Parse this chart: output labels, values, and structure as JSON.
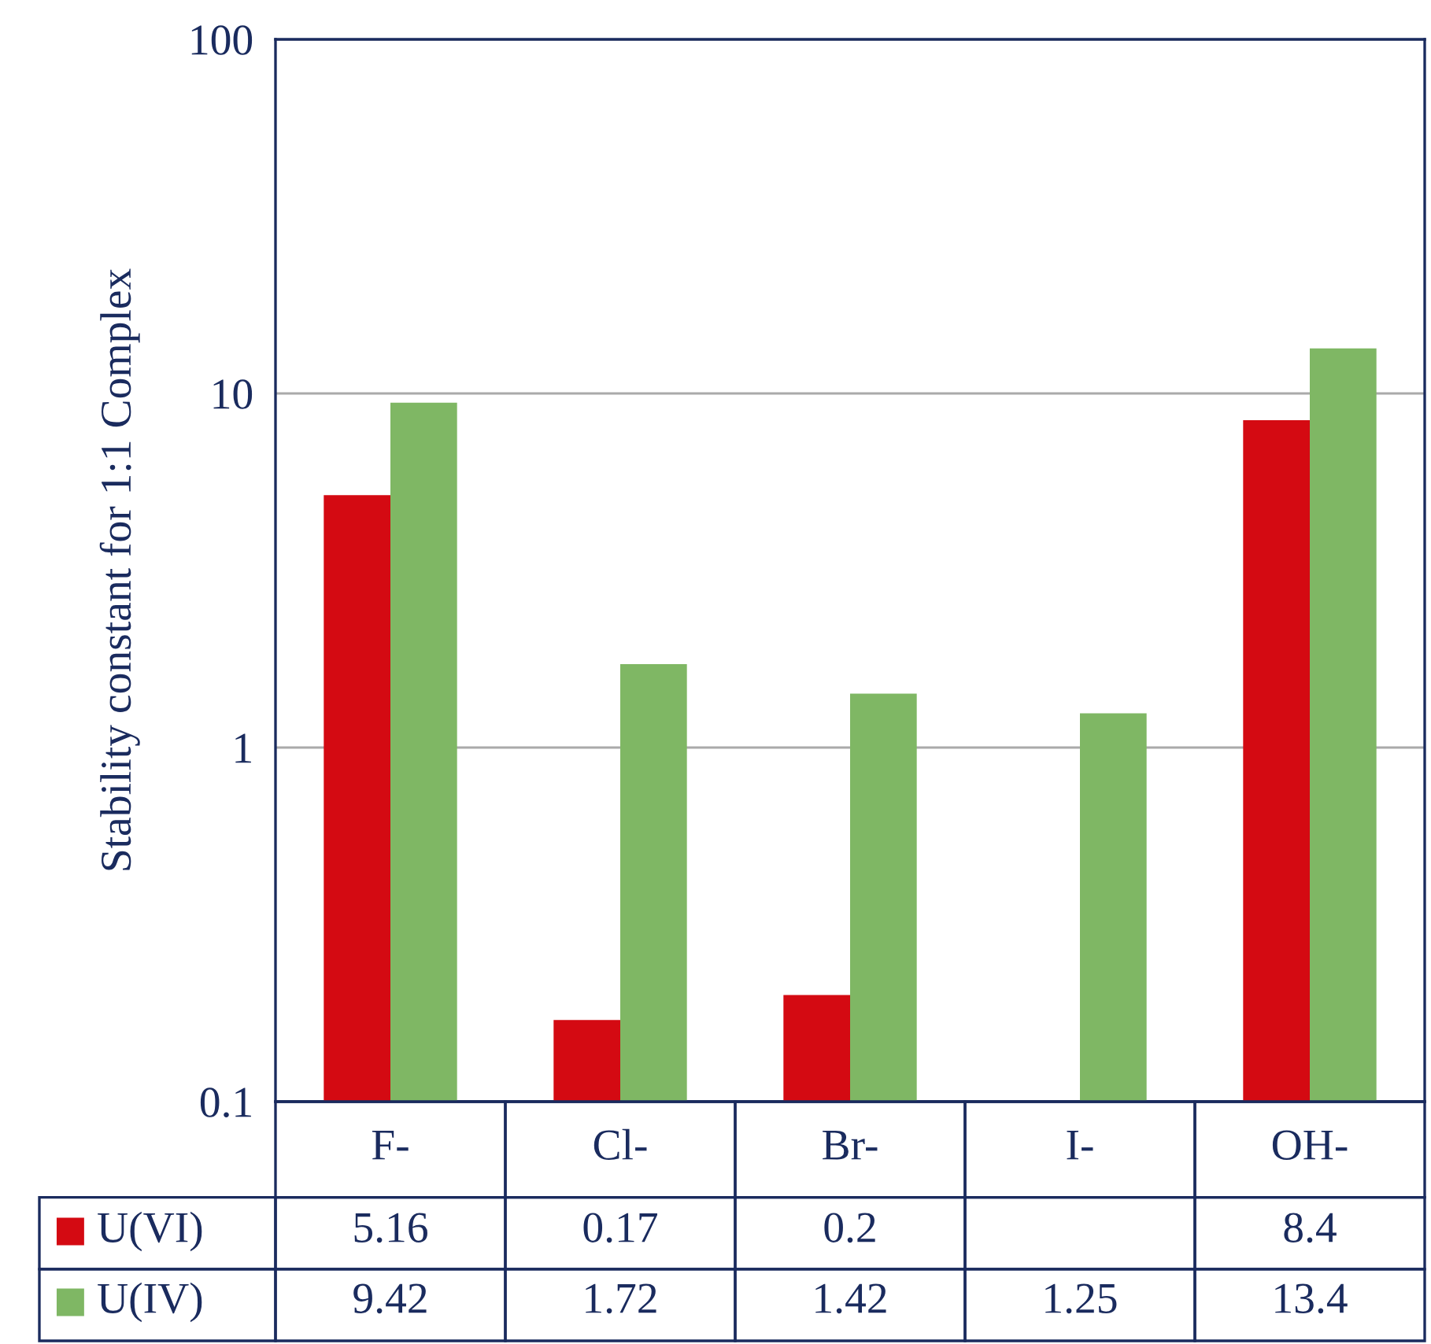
{
  "chart_data": {
    "type": "bar",
    "ylabel": "Stability constant for 1:1 Complex",
    "categories": [
      "F-",
      "Cl-",
      "Br-",
      "I-",
      "OH-"
    ],
    "series": [
      {
        "name": "U(VI)",
        "color": "#d40a12",
        "values": [
          5.16,
          0.17,
          0.2,
          null,
          8.4
        ]
      },
      {
        "name": "U(IV)",
        "color": "#7fb764",
        "values": [
          9.42,
          1.72,
          1.42,
          1.25,
          13.4
        ]
      }
    ],
    "log": true,
    "ylim": [
      0.1,
      100
    ],
    "yticks": [
      0.1,
      1,
      10,
      100
    ],
    "grid": "y",
    "legend": "bottom",
    "data_labels": true
  }
}
